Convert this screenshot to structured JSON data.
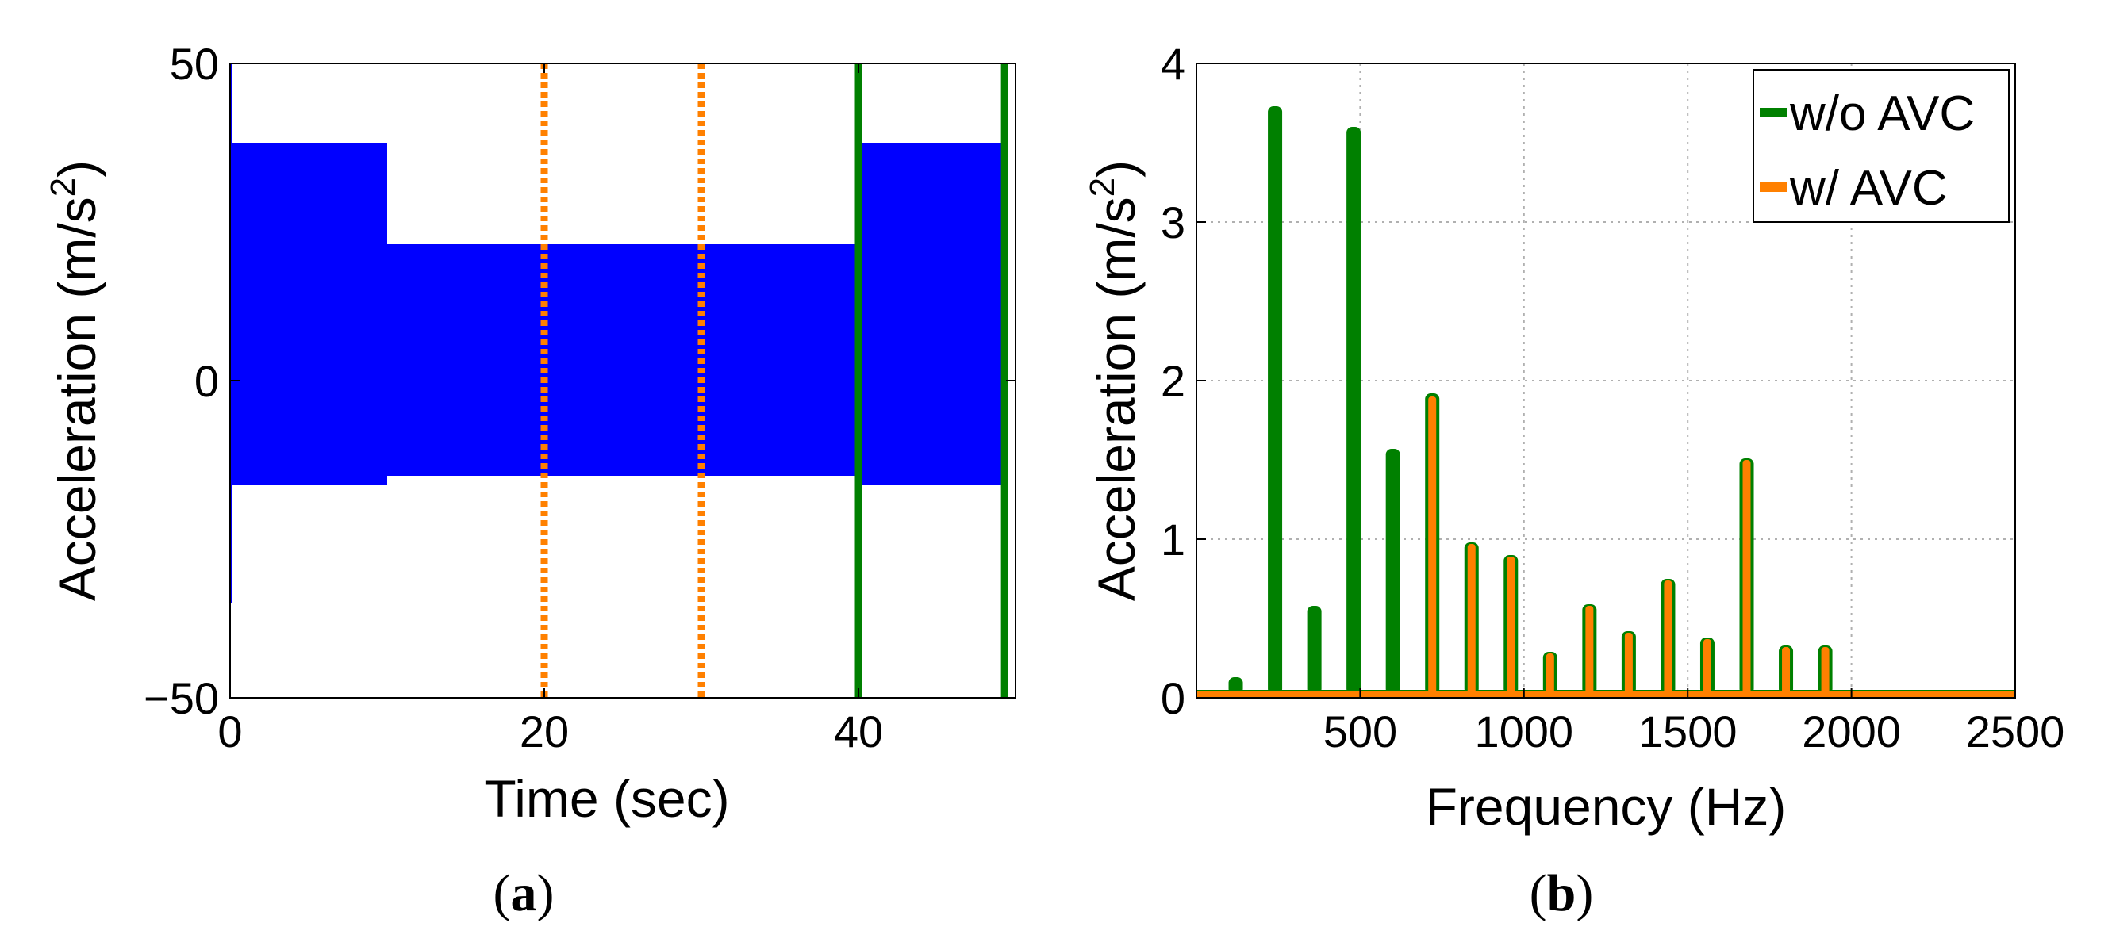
{
  "chart_data": [
    {
      "type": "line",
      "panel": "a",
      "panel_label": {
        "open": "(",
        "letter": "a",
        "close": ")"
      },
      "title": "",
      "xlabel": "Time (sec)",
      "ylabel": {
        "base": "Acceleration (m/s",
        "sup": "2",
        "end": ")"
      },
      "xlim": [
        0,
        50
      ],
      "ylim": [
        -50,
        50
      ],
      "xticks": [
        0,
        20,
        40
      ],
      "xtick_labels": [
        "0",
        "20",
        "40"
      ],
      "yticks": [
        -50,
        0,
        50
      ],
      "ytick_labels": [
        "−50",
        "0",
        "50"
      ],
      "grid": false,
      "colors": {
        "signal": "#0000ff",
        "orange_marker": "#ff8000",
        "green_marker": "#008000"
      },
      "signal_envelope": [
        {
          "t0": 0,
          "t1": 10,
          "upper": 37.5,
          "lower": -16.5
        },
        {
          "t0": 10,
          "t1": 40,
          "upper": 21.5,
          "lower": -15
        },
        {
          "t0": 40,
          "t1": 49.3,
          "upper": 37.5,
          "lower": -16.5
        }
      ],
      "signal_start_spike": {
        "t": 0.05,
        "upper": 50,
        "lower": -35
      },
      "vertical_markers": [
        {
          "x": 20,
          "style": "dotted",
          "color": "#ff8000"
        },
        {
          "x": 30,
          "style": "dotted",
          "color": "#ff8000"
        },
        {
          "x": 40,
          "style": "solid",
          "color": "#008000"
        },
        {
          "x": 49.3,
          "style": "solid",
          "color": "#008000"
        }
      ]
    },
    {
      "type": "line",
      "panel": "b",
      "panel_label": {
        "open": "(",
        "letter": "b",
        "close": ")"
      },
      "title": "",
      "xlabel": "Frequency (Hz)",
      "ylabel": {
        "base": "Acceleration (m/s",
        "sup": "2",
        "end": ")"
      },
      "xlim": [
        0,
        2500
      ],
      "ylim": [
        0,
        4
      ],
      "xticks": [
        500,
        1000,
        1500,
        2000,
        2500
      ],
      "xtick_labels": [
        "500",
        "1000",
        "1500",
        "2000",
        "2500"
      ],
      "yticks": [
        0,
        1,
        2,
        3,
        4
      ],
      "ytick_labels": [
        "0",
        "1",
        "2",
        "3",
        "4"
      ],
      "grid": true,
      "legend_position": "top-right",
      "baseline": 0.02,
      "series": [
        {
          "name": "w/o AVC",
          "color": "#008000",
          "peaks_x": [
            120,
            240,
            360,
            480,
            600,
            720,
            840,
            960,
            1080,
            1200,
            1320,
            1440,
            1560,
            1680,
            1800,
            1920
          ],
          "peaks_y": [
            0.13,
            3.73,
            0.58,
            3.6,
            1.57,
            1.92,
            0.98,
            0.9,
            0.29,
            0.59,
            0.42,
            0.75,
            0.38,
            1.51,
            0.33,
            0.33
          ]
        },
        {
          "name": "w/ AVC",
          "color": "#ff8000",
          "peaks_x": [
            720,
            840,
            960,
            1080,
            1200,
            1320,
            1440,
            1560,
            1680,
            1800,
            1920
          ],
          "peaks_y": [
            1.9,
            0.97,
            0.89,
            0.28,
            0.58,
            0.41,
            0.74,
            0.37,
            1.5,
            0.32,
            0.32
          ]
        }
      ]
    }
  ]
}
